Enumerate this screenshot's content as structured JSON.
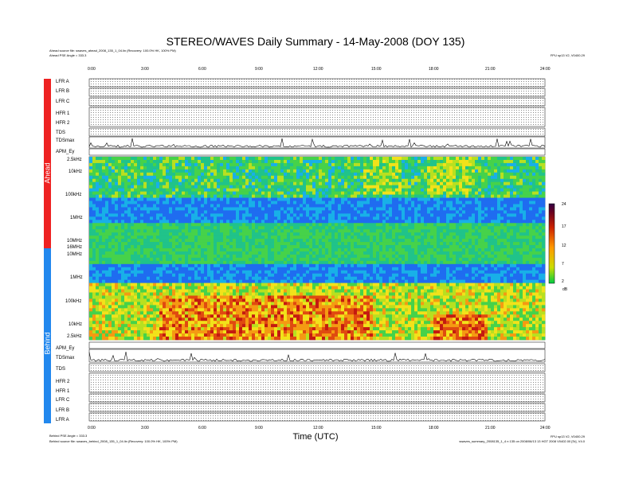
{
  "title": "STEREO/WAVES Daily Summary - 14-May-2008 (DOY 135)",
  "ahead_source": "Ahead source file: swaves_ahead_2008_135_1_04.lin (Recovery: 100.0% HK, 100% PM)",
  "ahead_angle": "Ahead PSE Angle = 333.3",
  "behind_angle": "Behind PSE Angle = 333.3",
  "behind_source": "Behind source file: swaves_behind_2008_135_1_04.lin (Recovery: 100.0% HK, 100% PM)",
  "fpu_top": "FPU sp13 V2, V0400.29",
  "fpu_bottom": "FPU sp13 V2, V0400.29",
  "footer_right": "swaves_summary_2008135_1_4 n 135 on 2008/06/13 13 HGT 2008 V0402.00 [Sr], V4.0",
  "x_axis_label": "Time (UTC)",
  "x_ticks": [
    "0:00",
    "3:00",
    "6:00",
    "9:00",
    "12:00",
    "15:00",
    "18:00",
    "21:00",
    "24:00"
  ],
  "spacecraft": {
    "ahead": "Ahead",
    "behind": "Behind"
  },
  "ahead_rows": [
    "LFR A",
    "LFR B",
    "LFR C",
    "HFR 1",
    "HFR 2",
    "TDS",
    "TDSmax",
    "APM_Ey"
  ],
  "behind_rows": [
    "APM_Ey",
    "TDSmax",
    "TDS",
    "HFR 2",
    "HFR 1",
    "LFR C",
    "LFR B",
    "LFR A"
  ],
  "freq_ticks": [
    "2.5kHz",
    "10kHz",
    "100kHz",
    "1MHz",
    "10MHz",
    "16MHz",
    "10MHz",
    "1MHz",
    "100kHz",
    "10kHz",
    "2.5kHz"
  ],
  "colorbar": {
    "ticks": [
      "24",
      "17",
      "12",
      "7",
      "2"
    ],
    "unit": "dB"
  },
  "chart_data": {
    "type": "heatmap",
    "title": "STEREO/WAVES Daily Summary - 14-May-2008 (DOY 135)",
    "xlabel": "Time (UTC)",
    "xlim": [
      0,
      24
    ],
    "colorbar": {
      "label": "dB",
      "range": [
        2,
        24
      ],
      "ticks": [
        24,
        17,
        12,
        7,
        2
      ]
    },
    "panels": [
      {
        "name": "Ahead",
        "y_ticks": [
          "2.5kHz",
          "10kHz",
          "100kHz",
          "1MHz",
          "10MHz",
          "16MHz"
        ]
      },
      {
        "name": "Behind",
        "y_ticks": [
          "10MHz",
          "1MHz",
          "100kHz",
          "10kHz",
          "2.5kHz"
        ]
      }
    ]
  },
  "colors": {
    "ahead_bar": "#ee2222",
    "behind_bar": "#2288ee"
  }
}
